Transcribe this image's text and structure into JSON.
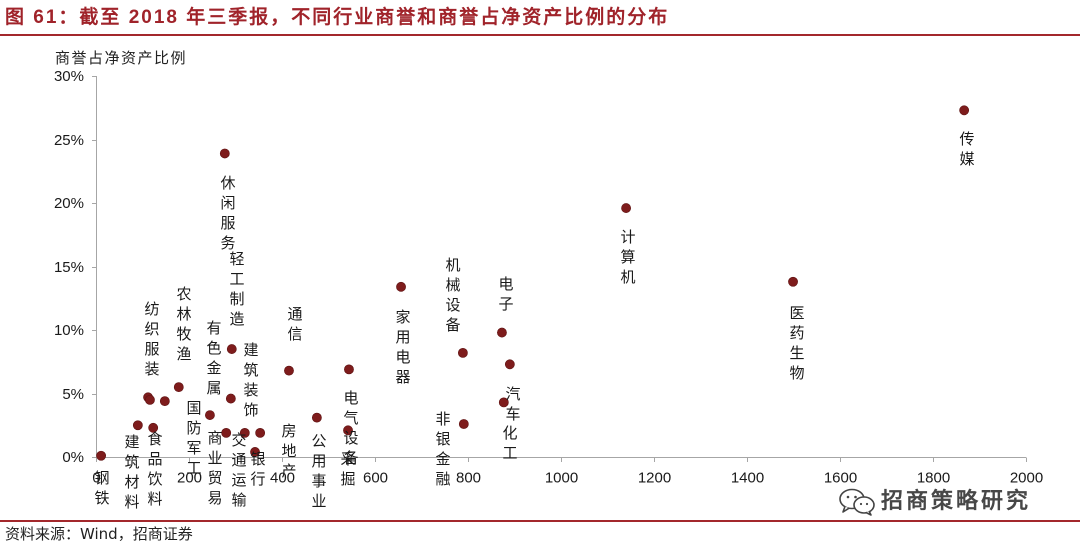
{
  "colors": {
    "title": "#A0232A",
    "rule": "#A3282C",
    "point": "#7E1C1C",
    "axis": "#A6A6A6",
    "text": "#1A1A1A"
  },
  "figure": {
    "source": "资料来源：Wind，招商证券",
    "watermark": "招商策略研究",
    "watermark_icon": "wechat-icon"
  },
  "chart_data": {
    "type": "scatter",
    "title": "图 61：截至 2018 年三季报，不同行业商誉和商誉占净资产比例的分布",
    "ylabel": "商誉占净资产比例",
    "xlim": [
      0,
      2000
    ],
    "ylim": [
      0,
      30
    ],
    "grid": false,
    "xticks": [
      {
        "value": 0,
        "label": "0"
      },
      {
        "value": 200,
        "label": "200"
      },
      {
        "value": 400,
        "label": "400"
      },
      {
        "value": 600,
        "label": "600"
      },
      {
        "value": 800,
        "label": "800"
      },
      {
        "value": 1000,
        "label": "1000"
      },
      {
        "value": 1200,
        "label": "1200"
      },
      {
        "value": 1400,
        "label": "1400"
      },
      {
        "value": 1600,
        "label": "1600"
      },
      {
        "value": 1800,
        "label": "1800"
      },
      {
        "value": 2000,
        "label": "2000"
      }
    ],
    "yticks": [
      {
        "value": 0,
        "label": "0%"
      },
      {
        "value": 5,
        "label": "5%"
      },
      {
        "value": 10,
        "label": "10%"
      },
      {
        "value": 15,
        "label": "15%"
      },
      {
        "value": 20,
        "label": "20%"
      },
      {
        "value": 25,
        "label": "25%"
      },
      {
        "value": 30,
        "label": "30%"
      }
    ],
    "points": [
      {
        "label": "钢铁",
        "x": 11,
        "y": 0.1
      },
      {
        "label": "建筑材料",
        "x": 90,
        "y": 2.5
      },
      {
        "label": "纺织服装",
        "x": 112,
        "y": 4.7
      },
      {
        "x": 116,
        "y": 4.5
      },
      {
        "label": "食品饮料",
        "x": 123,
        "y": 2.3
      },
      {
        "label": "国防军工",
        "x": 148,
        "y": 4.4
      },
      {
        "label": "农林牧渔",
        "x": 178,
        "y": 5.5
      },
      {
        "label": "有色金属",
        "x": 245,
        "y": 3.3
      },
      {
        "label": "休闲服务",
        "x": 277,
        "y": 23.9
      },
      {
        "label": "商业贸易",
        "x": 280,
        "y": 1.9
      },
      {
        "label": "建筑装饰",
        "x": 290,
        "y": 4.6
      },
      {
        "label": "轻工制造",
        "x": 292,
        "y": 8.5
      },
      {
        "label": "交通运输",
        "x": 320,
        "y": 1.9
      },
      {
        "label": "银行",
        "x": 342,
        "y": 0.4
      },
      {
        "label": "房地产",
        "x": 353,
        "y": 1.9
      },
      {
        "label": "通信",
        "x": 415,
        "y": 6.8
      },
      {
        "label": "公用事业",
        "x": 475,
        "y": 3.1
      },
      {
        "label": "采掘",
        "x": 542,
        "y": 2.1
      },
      {
        "label": "电气设备",
        "x": 544,
        "y": 6.9
      },
      {
        "label": "家用电器",
        "x": 656,
        "y": 13.4
      },
      {
        "label": "机械设备",
        "x": 789,
        "y": 8.2
      },
      {
        "label": "非银金融",
        "x": 791,
        "y": 2.6
      },
      {
        "label": "电子",
        "x": 873,
        "y": 9.8
      },
      {
        "label": "化工",
        "x": 877,
        "y": 4.3
      },
      {
        "label": "汽车",
        "x": 890,
        "y": 7.3
      },
      {
        "label": "计算机",
        "x": 1140,
        "y": 19.6
      },
      {
        "label": "医药生物",
        "x": 1499,
        "y": 13.8
      },
      {
        "label": "传媒",
        "x": 1867,
        "y": 27.3
      }
    ]
  }
}
